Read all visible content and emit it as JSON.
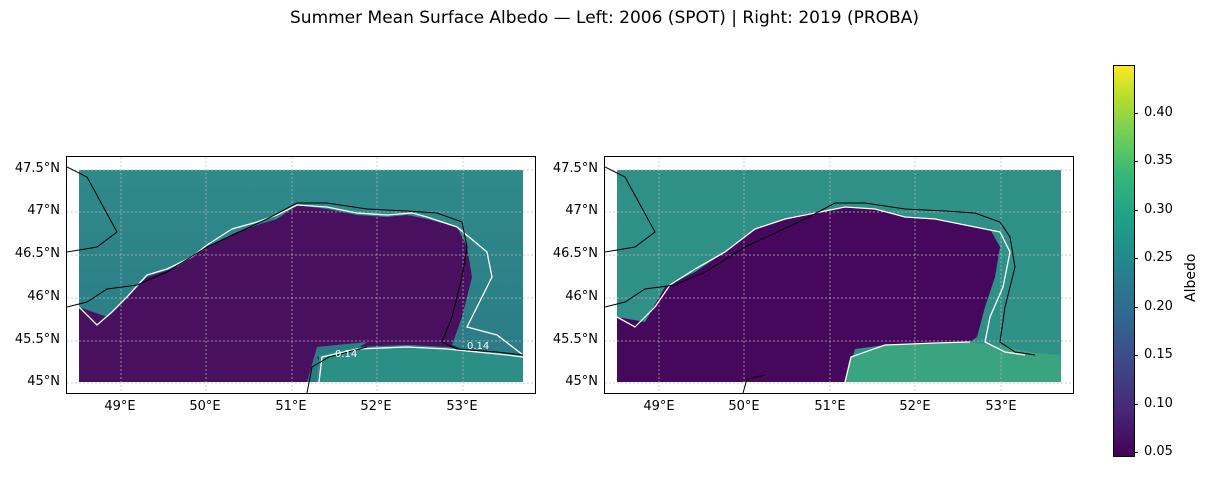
{
  "title": "Summer Mean Surface Albedo — Left: 2006 (SPOT) | Right: 2019 (PROBA)",
  "panels": [
    {
      "year": "2006",
      "sensor": "SPOT",
      "lat_ticks": [
        "47.5°N",
        "47°N",
        "46.5°N",
        "46°N",
        "45.5°N",
        "45°N"
      ],
      "lon_ticks": [
        "49°E",
        "50°E",
        "51°E",
        "52°E",
        "53°E"
      ],
      "contour_labels": [
        "0.14",
        "0.14"
      ]
    },
    {
      "year": "2019",
      "sensor": "PROBA",
      "lat_ticks": [
        "47.5°N",
        "47°N",
        "46.5°N",
        "46°N",
        "45.5°N",
        "45°N"
      ],
      "lon_ticks": [
        "49°E",
        "50°E",
        "51°E",
        "52°E",
        "53°E"
      ],
      "contour_labels": []
    }
  ],
  "colorbar": {
    "label": "Albedo",
    "colormap": "viridis",
    "ticks": [
      "0.05",
      "0.10",
      "0.15",
      "0.20",
      "0.25",
      "0.30",
      "0.35",
      "0.40"
    ],
    "range": [
      0.02,
      0.45
    ]
  },
  "map_extent": {
    "lon": [
      48.4,
      53.9
    ],
    "lat": [
      44.9,
      47.65
    ]
  },
  "colors": {
    "sea": "#46085c",
    "land": "#2a8c8a",
    "land_bright": "#5dc863",
    "contour": "#ffffff",
    "coastline": "#000000"
  }
}
